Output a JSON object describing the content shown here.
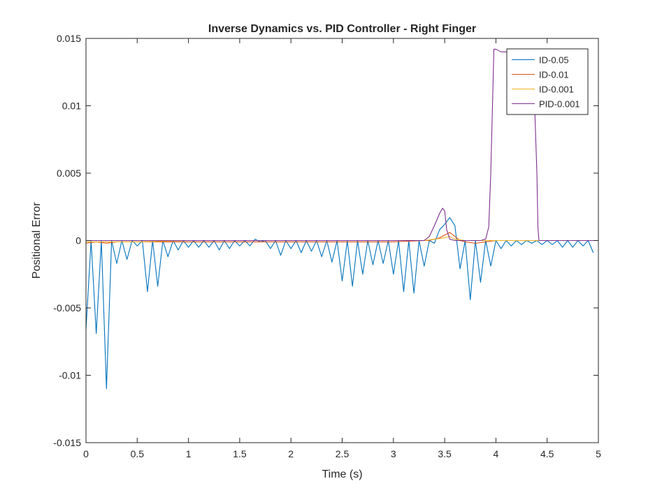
{
  "chart_data": {
    "type": "line",
    "title": "Inverse Dynamics vs. PID Controller - Right Finger",
    "xlabel": "Time (s)",
    "ylabel": "Positional Error",
    "xlim": [
      0,
      5
    ],
    "ylim": [
      -0.015,
      0.015
    ],
    "xticks": [
      0,
      0.5,
      1,
      1.5,
      2,
      2.5,
      3,
      3.5,
      4,
      4.5,
      5
    ],
    "xtick_labels": [
      "0",
      "0.5",
      "1",
      "1.5",
      "2",
      "2.5",
      "3",
      "3.5",
      "4",
      "4.5",
      "5"
    ],
    "yticks": [
      -0.015,
      -0.01,
      -0.005,
      0,
      0.005,
      0.01,
      0.015
    ],
    "ytick_labels": [
      "-0.015",
      "-0.01",
      "-0.005",
      "0",
      "0.005",
      "0.01",
      "0.015"
    ],
    "grid": false,
    "legend_position": "top-right",
    "series": [
      {
        "name": "ID-0.05",
        "color": "#0072BD",
        "x": [
          0,
          0.05,
          0.1,
          0.15,
          0.2,
          0.25,
          0.3,
          0.35,
          0.4,
          0.45,
          0.5,
          0.55,
          0.6,
          0.65,
          0.7,
          0.75,
          0.8,
          0.85,
          0.9,
          0.95,
          1.0,
          1.05,
          1.1,
          1.15,
          1.2,
          1.25,
          1.3,
          1.35,
          1.4,
          1.45,
          1.5,
          1.55,
          1.6,
          1.65,
          1.7,
          1.75,
          1.8,
          1.85,
          1.9,
          1.95,
          2.0,
          2.05,
          2.1,
          2.15,
          2.2,
          2.25,
          2.3,
          2.35,
          2.4,
          2.45,
          2.5,
          2.55,
          2.6,
          2.65,
          2.7,
          2.75,
          2.8,
          2.85,
          2.9,
          2.95,
          3.0,
          3.05,
          3.1,
          3.15,
          3.2,
          3.25,
          3.3,
          3.35,
          3.4,
          3.45,
          3.5,
          3.55,
          3.6,
          3.65,
          3.7,
          3.75,
          3.8,
          3.85,
          3.9,
          3.95,
          4.0,
          4.05,
          4.1,
          4.15,
          4.2,
          4.25,
          4.3,
          4.35,
          4.4,
          4.45,
          4.5,
          4.55,
          4.6,
          4.65,
          4.7,
          4.75,
          4.8,
          4.85,
          4.9,
          4.95
        ],
        "y": [
          -0.0066,
          0,
          -0.0069,
          0,
          -0.011,
          0,
          -0.0017,
          0,
          -0.0014,
          0,
          -0.0004,
          0,
          -0.0038,
          0,
          -0.0034,
          0,
          -0.0012,
          0,
          -0.0007,
          0,
          -0.0005,
          0,
          -0.0005,
          0,
          -0.0005,
          0,
          -0.0007,
          0,
          -0.0006,
          0,
          -0.0004,
          0,
          -0.0004,
          0.0001,
          -0.0001,
          0,
          -0.0006,
          0,
          -0.0011,
          0,
          -0.0006,
          0,
          -0.0009,
          0,
          -0.0008,
          0,
          -0.0012,
          0,
          -0.0016,
          0,
          -0.003,
          0,
          -0.0034,
          0,
          -0.0025,
          0,
          -0.0018,
          0,
          -0.0017,
          0,
          -0.0025,
          0,
          -0.0038,
          0,
          -0.0039,
          0,
          -0.0019,
          0,
          -0.0002,
          0.0008,
          0.0012,
          0.0017,
          0.0011,
          -0.0021,
          0,
          -0.0044,
          0,
          -0.0031,
          0,
          -0.0019,
          0,
          -0.0006,
          0,
          -0.0004,
          0,
          -0.0003,
          0,
          -0.0002,
          0,
          -0.0003,
          0,
          -0.0003,
          0,
          -0.0005,
          0,
          -0.0005,
          0,
          -0.0004,
          0,
          -0.0009
        ]
      },
      {
        "name": "ID-0.01",
        "color": "#D95319",
        "x": [
          0,
          0.1,
          0.2,
          0.3,
          0.4,
          0.5,
          0.6,
          0.7,
          0.8,
          0.9,
          1.0,
          1.5,
          2.0,
          2.5,
          3.0,
          3.3,
          3.35,
          3.4,
          3.45,
          3.5,
          3.55,
          3.6,
          3.65,
          3.7,
          3.8,
          3.9,
          4.0,
          4.5,
          5.0
        ],
        "y": [
          -0.0002,
          -0.0001,
          -0.0002,
          -0.0001,
          -0.0001,
          -0.0001,
          -0.0001,
          -0.0001,
          -0.0001,
          -0.0001,
          -0.0001,
          -0.0001,
          -0.0001,
          -0.0001,
          -0.0001,
          0,
          0,
          0.0001,
          0.0002,
          0.0004,
          0.0006,
          0.0003,
          0,
          -0.0001,
          -0.0002,
          -0.0001,
          0,
          0,
          0
        ]
      },
      {
        "name": "ID-0.001",
        "color": "#EDB120",
        "x": [
          0,
          0.5,
          1.0,
          1.5,
          2.0,
          2.5,
          3.0,
          3.3,
          3.4,
          3.5,
          3.55,
          3.6,
          3.7,
          4.0,
          4.5,
          5.0
        ],
        "y": [
          -0.0001,
          -0.0001,
          0,
          0,
          0,
          0,
          0,
          0,
          0.0001,
          0.0002,
          0.0003,
          0.0001,
          0,
          0,
          0,
          0
        ]
      },
      {
        "name": "PID-0.001",
        "color": "#7E2F8E",
        "x": [
          0,
          0.5,
          1.0,
          1.5,
          2.0,
          2.5,
          3.0,
          3.3,
          3.35,
          3.4,
          3.45,
          3.48,
          3.5,
          3.52,
          3.55,
          3.6,
          3.7,
          3.8,
          3.85,
          3.9,
          3.93,
          3.95,
          3.97,
          3.98,
          4.0,
          4.05,
          4.1,
          4.2,
          4.3,
          4.35,
          4.38,
          4.4,
          4.41,
          4.42,
          4.5,
          5.0
        ],
        "y": [
          0,
          0,
          0,
          0,
          0,
          0,
          0,
          0,
          0.0003,
          0.0011,
          0.002,
          0.0024,
          0.0022,
          0.0008,
          0.0001,
          0,
          0,
          0,
          0,
          0.0001,
          0.001,
          0.005,
          0.011,
          0.0142,
          0.0142,
          0.014,
          0.014,
          0.0138,
          0.0135,
          0.0128,
          0.0095,
          0.005,
          0.001,
          0,
          0,
          0
        ]
      }
    ]
  }
}
